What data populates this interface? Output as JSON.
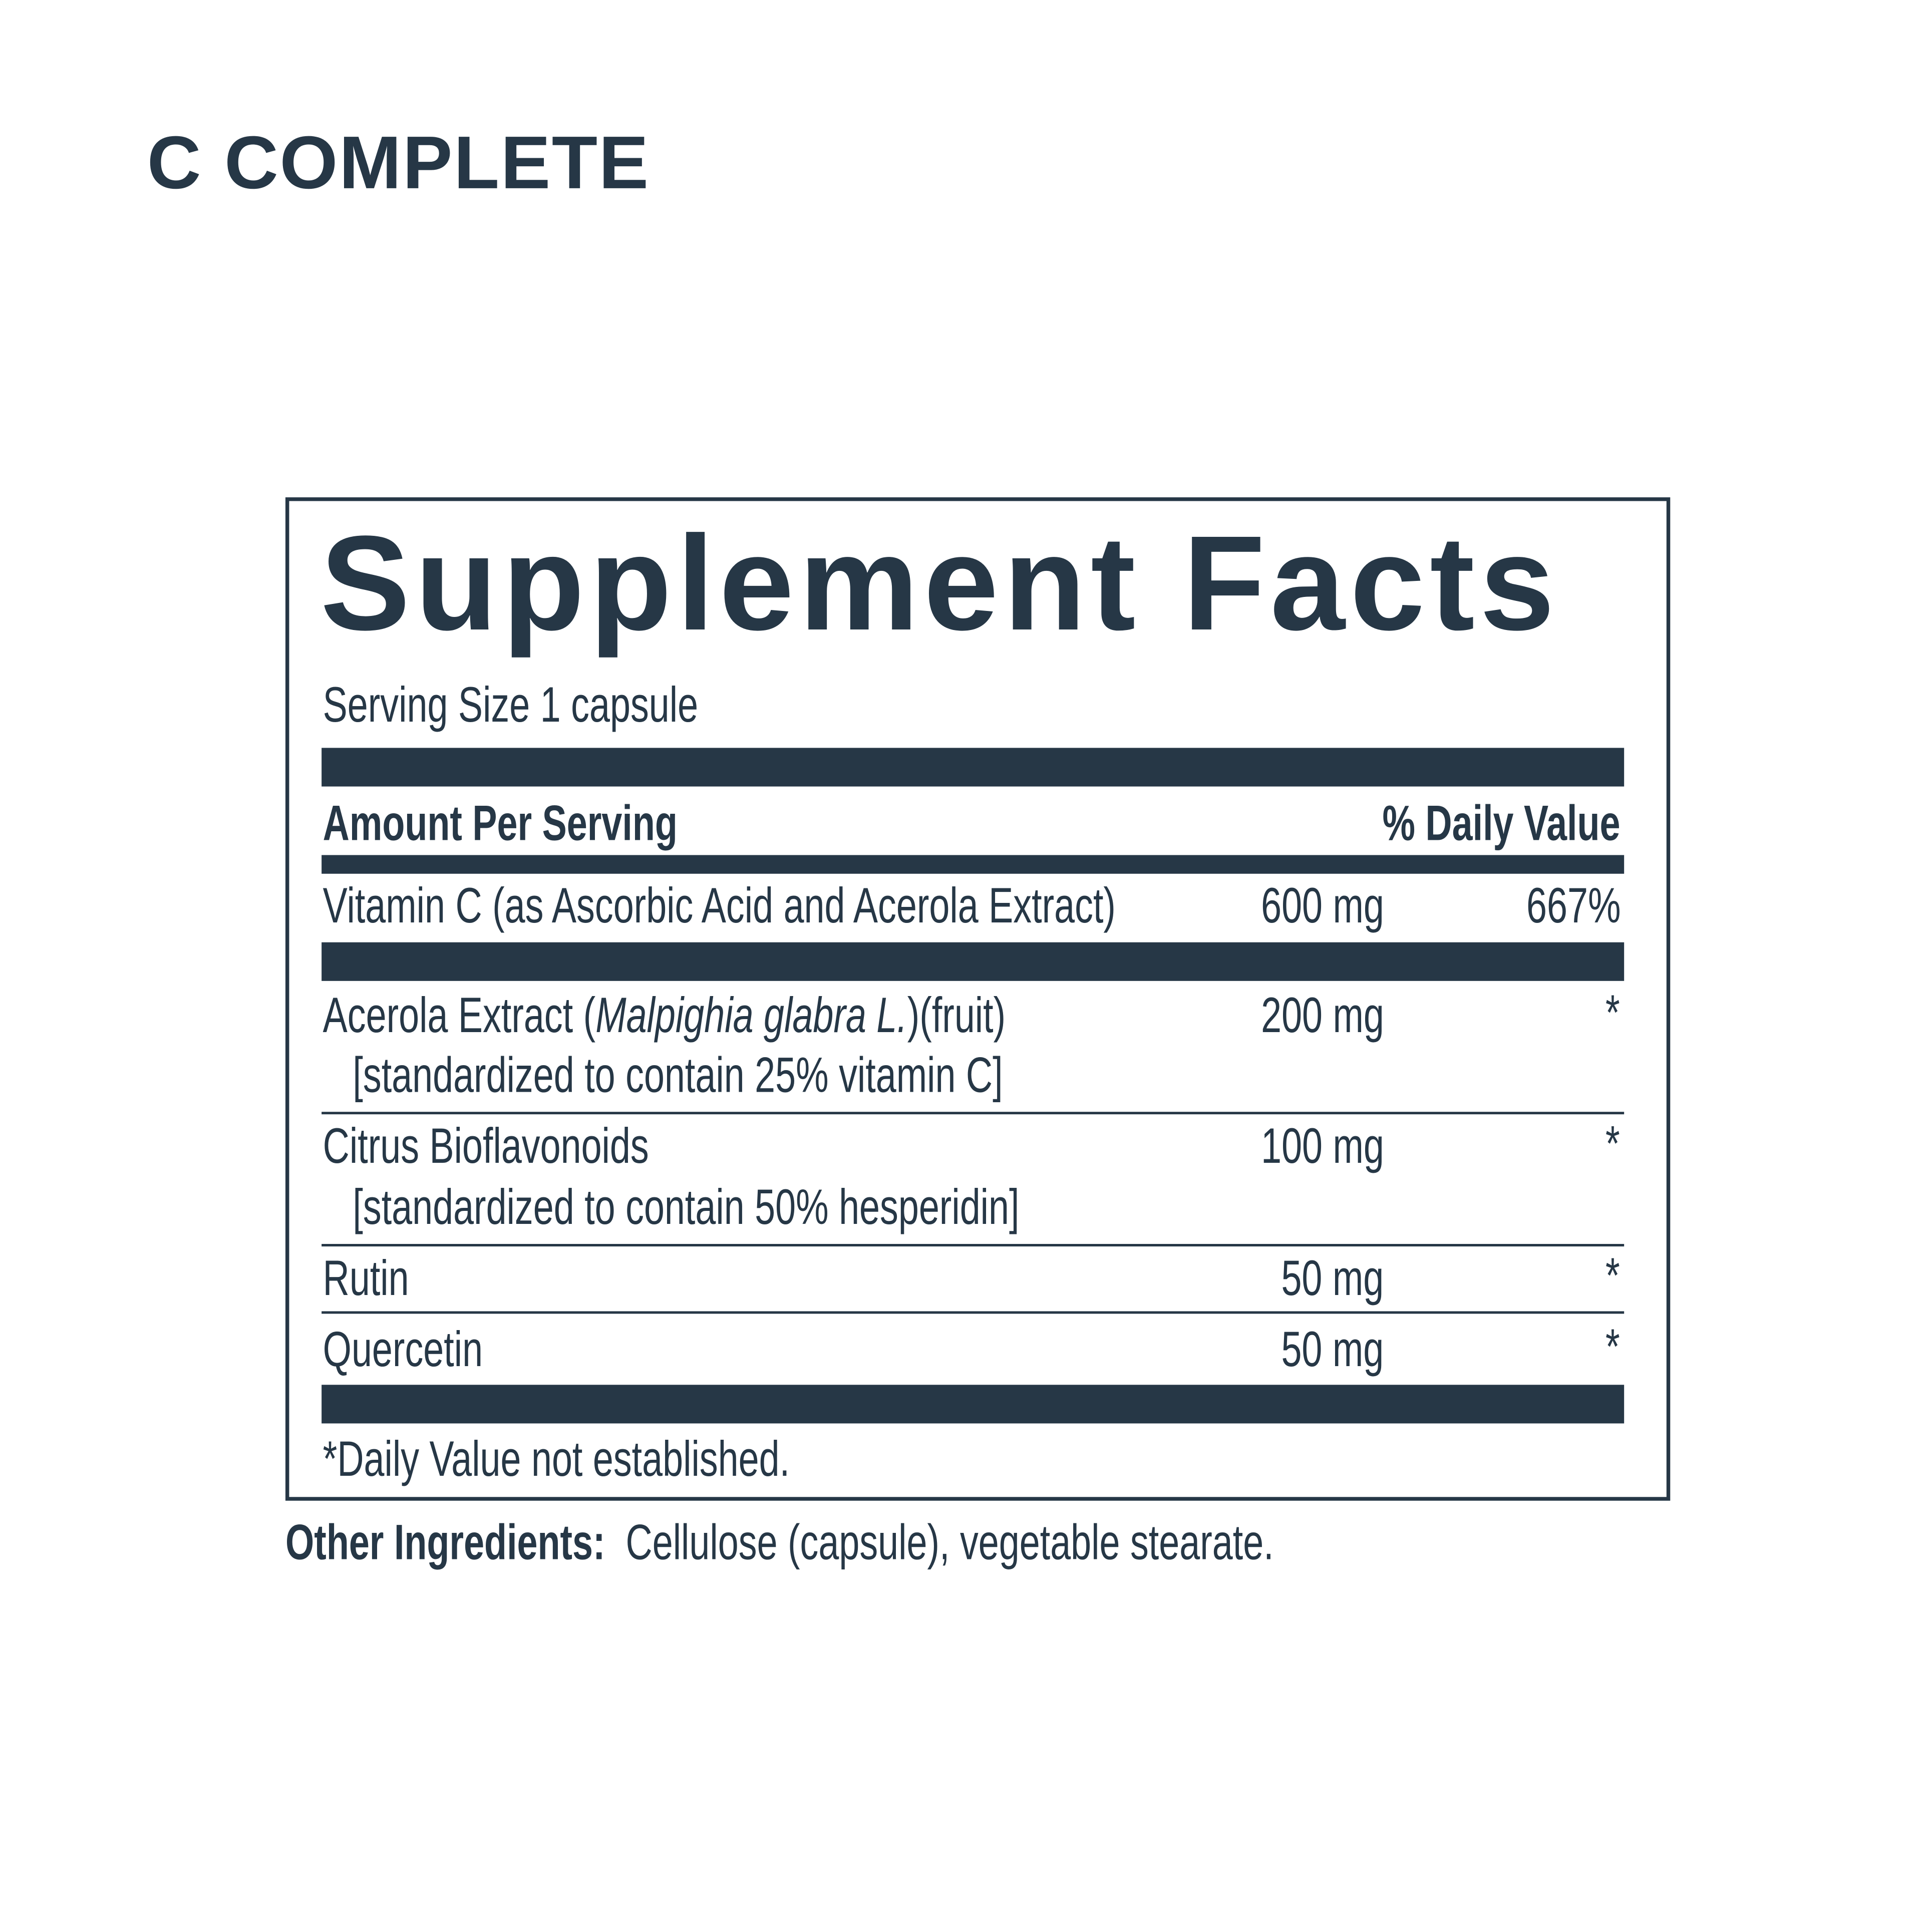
{
  "product_title": "C COMPLETE",
  "label": {
    "heading": "Supplement Facts",
    "serving_size": "Serving Size 1 capsule",
    "header_left": "Amount Per Serving",
    "header_right": "% Daily Value",
    "rows": [
      {
        "name": "Vitamin C (as Ascorbic Acid and Acerola Extract)",
        "amount": "600 mg",
        "dv": "667%"
      },
      {
        "name_pre": "Acerola Extract (",
        "name_italic": "Malpighia glabra L.",
        "name_post": ")(fruit)",
        "sub": "[standardized to contain 25% vitamin C]",
        "amount": "200 mg",
        "dv": "*"
      },
      {
        "name": "Citrus Bioflavonoids",
        "sub": "[standardized to contain 50% hesperidin]",
        "amount": "100 mg",
        "dv": "*"
      },
      {
        "name": "Rutin",
        "amount": "50 mg",
        "dv": "*"
      },
      {
        "name": "Quercetin",
        "amount": "50 mg",
        "dv": "*"
      }
    ],
    "footnote": "*Daily Value not established."
  },
  "other_ingredients": {
    "label": "Other Ingredients:",
    "text": "Cellulose (capsule), vegetable stearate."
  },
  "colors": {
    "ink": "#263746",
    "background": "#ffffff"
  }
}
